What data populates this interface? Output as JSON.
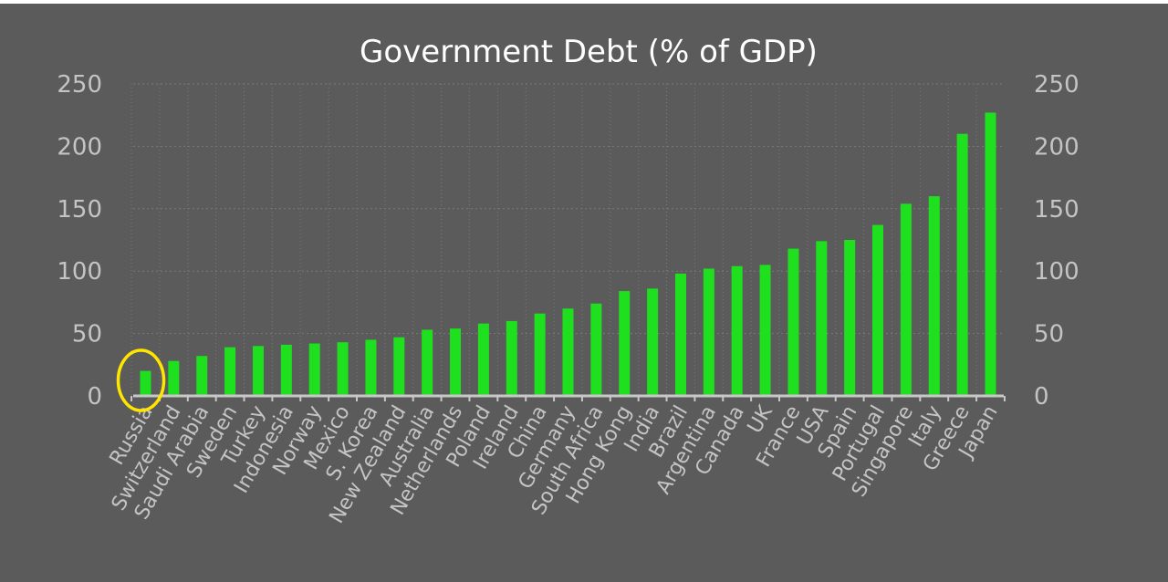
{
  "chart_data": {
    "type": "bar",
    "title": "Government Debt (% of GDP)",
    "xlabel": "",
    "ylabel": "",
    "ylim": [
      0,
      250
    ],
    "yticks": [
      0,
      50,
      100,
      150,
      200,
      250
    ],
    "secondary_y_axis": true,
    "grid": true,
    "legend": "none",
    "colors": {
      "background": "#5b5b5b",
      "bar": "#1fe01f",
      "axis": "#c8c8c8",
      "grid": "#7a7a7a",
      "highlight": "#ffe600"
    },
    "highlighted_category": "Russia",
    "categories": [
      "Russia",
      "Switzerland",
      "Saudi Arabia",
      "Sweden",
      "Turkey",
      "Indonesia",
      "Norway",
      "Mexico",
      "S. Korea",
      "New Zealand",
      "Australia",
      "Netherlands",
      "Poland",
      "Ireland",
      "China",
      "Germany",
      "South Africa",
      "Hong Kong",
      "India",
      "Brazil",
      "Argentina",
      "Canada",
      "UK",
      "France",
      "USA",
      "Spain",
      "Portugal",
      "Singapore",
      "Italy",
      "Greece",
      "Japan"
    ],
    "values": [
      20,
      28,
      32,
      39,
      40,
      41,
      42,
      43,
      45,
      47,
      53,
      54,
      58,
      60,
      66,
      70,
      74,
      84,
      86,
      98,
      102,
      104,
      105,
      118,
      124,
      125,
      137,
      154,
      160,
      210,
      227
    ]
  }
}
